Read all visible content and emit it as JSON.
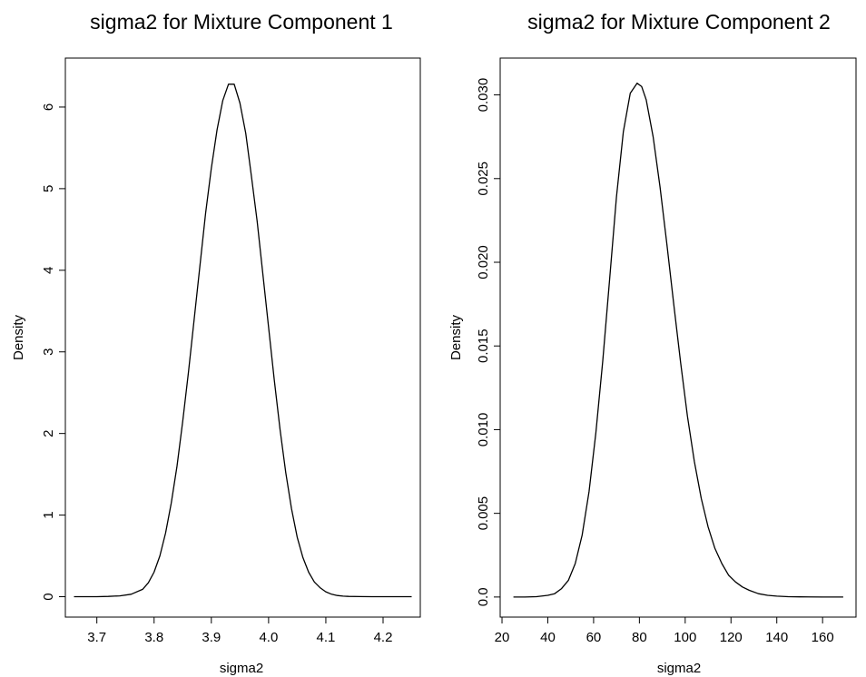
{
  "chart_data": [
    {
      "type": "line",
      "title": "sigma2 for Mixture Component 1",
      "xlabel": "sigma2",
      "ylabel": "Density",
      "xlim": [
        3.645,
        4.265
      ],
      "ylim": [
        -0.25,
        6.6
      ],
      "x_ticks": [
        3.7,
        3.8,
        3.9,
        4.0,
        4.1,
        4.2
      ],
      "x_tick_labels": [
        "3.7",
        "3.8",
        "3.9",
        "4.0",
        "4.1",
        "4.2"
      ],
      "y_ticks": [
        0,
        1,
        2,
        3,
        4,
        5,
        6
      ],
      "y_tick_labels": [
        "0",
        "1",
        "2",
        "3",
        "4",
        "5",
        "6"
      ],
      "grid": false,
      "series": [
        {
          "x": [
            3.66,
            3.7,
            3.72,
            3.74,
            3.76,
            3.78,
            3.79,
            3.8,
            3.81,
            3.82,
            3.83,
            3.84,
            3.85,
            3.86,
            3.87,
            3.88,
            3.89,
            3.9,
            3.91,
            3.92,
            3.93,
            3.94,
            3.95,
            3.96,
            3.97,
            3.98,
            3.99,
            4.0,
            4.01,
            4.02,
            4.03,
            4.04,
            4.05,
            4.06,
            4.07,
            4.08,
            4.09,
            4.1,
            4.11,
            4.12,
            4.13,
            4.14,
            4.16,
            4.18,
            4.2,
            4.25
          ],
          "y": [
            0.0,
            0.0,
            0.003,
            0.01,
            0.03,
            0.09,
            0.17,
            0.3,
            0.5,
            0.78,
            1.15,
            1.6,
            2.15,
            2.75,
            3.4,
            4.05,
            4.7,
            5.25,
            5.72,
            6.08,
            6.28,
            6.28,
            6.05,
            5.68,
            5.15,
            4.6,
            3.95,
            3.3,
            2.65,
            2.05,
            1.52,
            1.08,
            0.73,
            0.48,
            0.3,
            0.18,
            0.11,
            0.06,
            0.03,
            0.015,
            0.007,
            0.003,
            0.001,
            0.0,
            0.0,
            0.0
          ]
        }
      ]
    },
    {
      "type": "line",
      "title": "sigma2 for Mixture Component 2",
      "xlabel": "sigma2",
      "ylabel": "Density",
      "xlim": [
        19.2,
        174.6
      ],
      "ylim": [
        -0.0012,
        0.0322
      ],
      "x_ticks": [
        20,
        40,
        60,
        80,
        100,
        120,
        140,
        160
      ],
      "x_tick_labels": [
        "20",
        "40",
        "60",
        "80",
        "100",
        "120",
        "140",
        "160"
      ],
      "y_ticks": [
        0.0,
        0.005,
        0.01,
        0.015,
        0.02,
        0.025,
        0.03
      ],
      "y_tick_labels": [
        "0.0",
        "0.005",
        "0.010",
        "0.015",
        "0.020",
        "0.025",
        "0.030"
      ],
      "grid": false,
      "series": [
        {
          "x": [
            25,
            30,
            35,
            40,
            43,
            46,
            49,
            52,
            55,
            58,
            61,
            64,
            67,
            70,
            73,
            76,
            79,
            81,
            83,
            86,
            89,
            92,
            95,
            98,
            101,
            104,
            107,
            110,
            113,
            116,
            119,
            122,
            125,
            128,
            132,
            136,
            140,
            145,
            150,
            160,
            169
          ],
          "y": [
            0.0,
            0.0,
            2e-05,
            0.0001,
            0.0002,
            0.0005,
            0.001,
            0.002,
            0.0037,
            0.0063,
            0.0098,
            0.0141,
            0.019,
            0.0239,
            0.0278,
            0.0301,
            0.0307,
            0.0305,
            0.0297,
            0.0275,
            0.0245,
            0.0211,
            0.0175,
            0.014,
            0.0108,
            0.0081,
            0.0059,
            0.0042,
            0.0029,
            0.002,
            0.0013,
            0.0009,
            0.0006,
            0.0004,
            0.0002,
            0.0001,
            5e-05,
            2e-05,
            1e-05,
            0.0,
            0.0
          ]
        }
      ]
    }
  ]
}
